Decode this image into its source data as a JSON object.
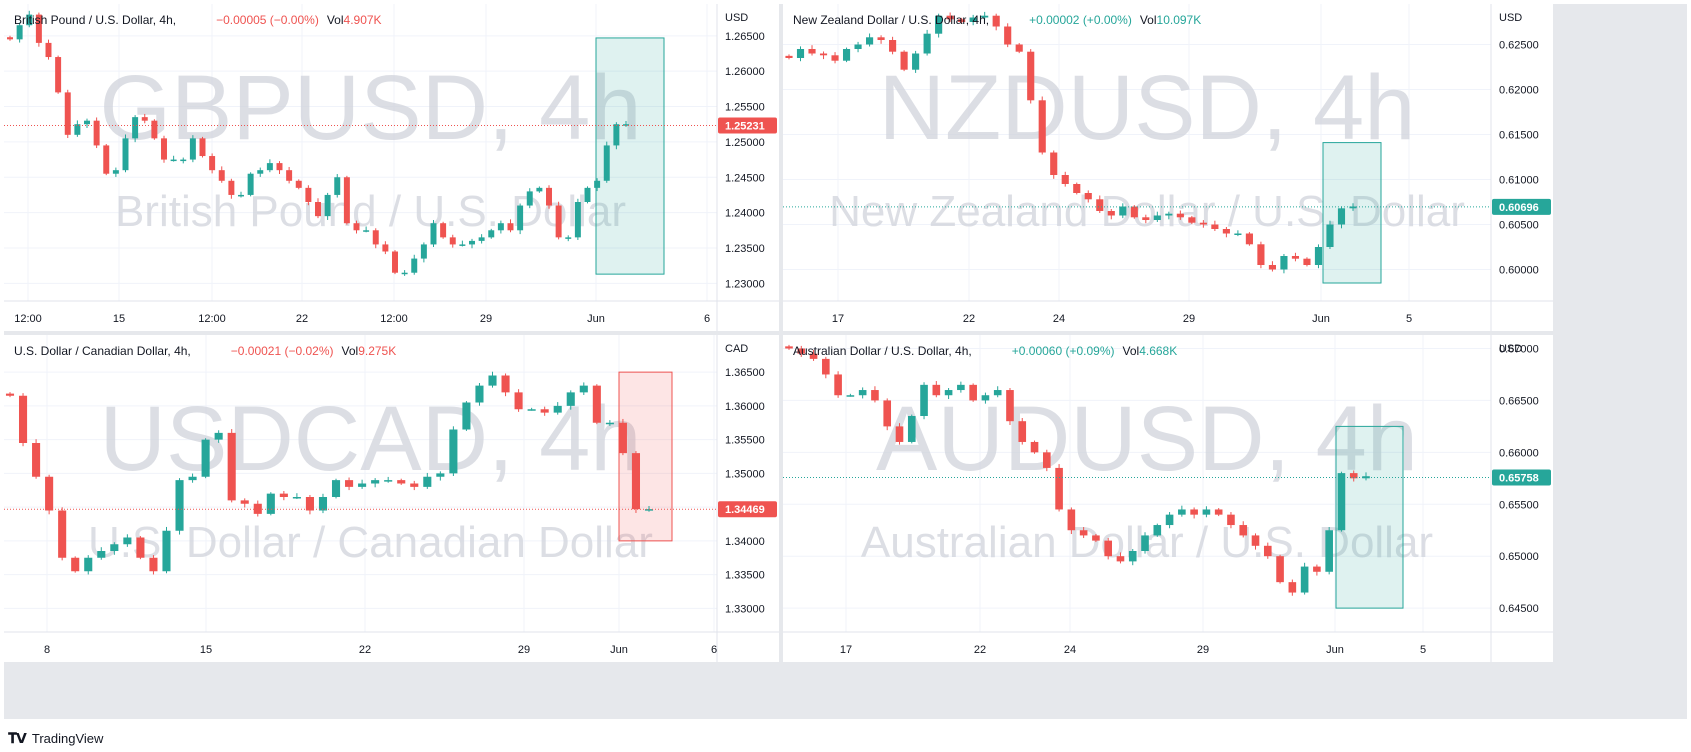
{
  "footer": {
    "brand": "TradingView",
    "logo_icon": "tradingview-logo-icon"
  },
  "colors": {
    "up": "#26a69a",
    "down": "#ef5350",
    "grid": "#f0f3fa",
    "watermark": "#d1d4dc"
  },
  "panels": [
    {
      "id": "gbpusd",
      "title": "British Pound / U.S. Dollar, 4h,",
      "change": "−0.00005 (−0.00%)",
      "vol_label": "Vol",
      "vol_value": "4.907K",
      "direction": "down",
      "currency": "USD",
      "watermark_main": "GBPUSD, 4h",
      "watermark_sub": "British Pound / U.S. Dollar",
      "price_label": "1.25231",
      "chart_data": {
        "type": "candlestick",
        "ylim": [
          1.2275,
          1.2695
        ],
        "y_ticks": [
          "1.23000",
          "1.23500",
          "1.24000",
          "1.24500",
          "1.25000",
          "1.25500",
          "1.26000",
          "1.26500"
        ],
        "x_ticks": [
          "12:00",
          "15",
          "12:00",
          "22",
          "12:00",
          "29",
          "Jun",
          "6"
        ],
        "last_price": 1.25231,
        "box": {
          "type": "long-position",
          "from": 1.2313,
          "to": 1.2647
        },
        "path": [
          1.2645,
          1.2665,
          1.268,
          1.264,
          1.262,
          1.257,
          1.251,
          1.2525,
          1.253,
          1.2495,
          1.2455,
          1.246,
          1.2505,
          1.2535,
          1.253,
          1.2505,
          1.2475,
          1.2475,
          1.2475,
          1.2505,
          1.248,
          1.246,
          1.2445,
          1.2425,
          1.2425,
          1.2455,
          1.246,
          1.247,
          1.246,
          1.2445,
          1.2435,
          1.2415,
          1.2395,
          1.2425,
          1.245,
          1.2385,
          1.2375,
          1.2375,
          1.2355,
          1.2345,
          1.2315,
          1.2315,
          1.2335,
          1.2355,
          1.2385,
          1.2365,
          1.2355,
          1.2355,
          1.236,
          1.2365,
          1.2375,
          1.2385,
          1.2375,
          1.241,
          1.243,
          1.2435,
          1.241,
          1.2365,
          1.2365,
          1.2415,
          1.2435,
          1.2445,
          1.2495,
          1.2525,
          1.2525
        ]
      }
    },
    {
      "id": "nzdusd",
      "title": "New Zealand Dollar / U.S. Dollar, 4h,",
      "change": "+0.00002 (+0.00%)",
      "vol_label": "Vol",
      "vol_value": "10.097K",
      "direction": "up",
      "currency": "USD",
      "watermark_main": "NZDUSD, 4h",
      "watermark_sub": "New Zealand Dollar / U.S. Dollar",
      "price_label": "0.60696",
      "chart_data": {
        "type": "candlestick",
        "ylim": [
          0.5965,
          0.6295
        ],
        "y_ticks": [
          "0.60000",
          "0.60500",
          "0.61000",
          "0.61500",
          "0.62000",
          "0.62500"
        ],
        "x_ticks": [
          "17",
          "22",
          "24",
          "29",
          "Jun",
          "5"
        ],
        "last_price": 0.60696,
        "box": {
          "type": "long-position",
          "from": 0.5985,
          "to": 0.6141
        },
        "path": [
          0.6235,
          0.6245,
          0.624,
          0.6238,
          0.6232,
          0.6245,
          0.625,
          0.6258,
          0.6255,
          0.6242,
          0.6222,
          0.624,
          0.6262,
          0.6282,
          0.6278,
          0.6275,
          0.628,
          0.6282,
          0.627,
          0.625,
          0.6242,
          0.6188,
          0.613,
          0.6105,
          0.6095,
          0.6085,
          0.6078,
          0.6065,
          0.606,
          0.607,
          0.6058,
          0.6055,
          0.606,
          0.6062,
          0.6058,
          0.6052,
          0.605,
          0.6045,
          0.604,
          0.604,
          0.6028,
          0.6005,
          0.6,
          0.6015,
          0.6012,
          0.6005,
          0.6025,
          0.605,
          0.6068,
          0.607
        ]
      }
    },
    {
      "id": "usdcad",
      "title": "U.S. Dollar / Canadian Dollar, 4h,",
      "change": "−0.00021 (−0.02%)",
      "vol_label": "Vol",
      "vol_value": "9.275K",
      "direction": "down",
      "currency": "CAD",
      "watermark_main": "USDCAD, 4h",
      "watermark_sub": "U.S. Dollar / Canadian Dollar",
      "price_label": "1.34469",
      "chart_data": {
        "type": "candlestick",
        "ylim": [
          1.3265,
          1.3705
        ],
        "y_ticks": [
          "1.33000",
          "1.33500",
          "1.34000",
          "1.34500",
          "1.35000",
          "1.35500",
          "1.36000",
          "1.36500"
        ],
        "x_ticks": [
          "8",
          "15",
          "22",
          "29",
          "Jun",
          "6"
        ],
        "last_price": 1.34469,
        "box": {
          "type": "short-position",
          "from": 1.34,
          "to": 1.365
        },
        "path": [
          1.3615,
          1.3545,
          1.3495,
          1.3445,
          1.3375,
          1.3355,
          1.3375,
          1.3385,
          1.3395,
          1.3405,
          1.3375,
          1.3355,
          1.3415,
          1.349,
          1.3495,
          1.355,
          1.356,
          1.346,
          1.3455,
          1.344,
          1.347,
          1.3465,
          1.3465,
          1.3445,
          1.3465,
          1.349,
          1.348,
          1.3485,
          1.349,
          1.349,
          1.3485,
          1.348,
          1.3495,
          1.35,
          1.3565,
          1.3605,
          1.363,
          1.3645,
          1.362,
          1.3595,
          1.3595,
          1.359,
          1.36,
          1.362,
          1.363,
          1.3575,
          1.3575,
          1.353,
          1.3447,
          1.3447
        ]
      }
    },
    {
      "id": "audusd",
      "title": "Australian Dollar / U.S. Dollar, 4h,",
      "change": "+0.00060 (+0.09%)",
      "vol_label": "Vol",
      "vol_value": "4.668K",
      "direction": "up",
      "currency": "USD",
      "watermark_main": "AUDUSD, 4h",
      "watermark_sub": "Australian Dollar / U.S. Dollar",
      "price_label": "0.65758",
      "chart_data": {
        "type": "candlestick",
        "ylim": [
          0.6427,
          0.6713
        ],
        "y_ticks": [
          "0.64500",
          "0.65000",
          "0.65500",
          "0.66000",
          "0.66500",
          "0.67000"
        ],
        "x_ticks": [
          "17",
          "22",
          "24",
          "29",
          "Jun",
          "5"
        ],
        "last_price": 0.65758,
        "box": {
          "type": "long-position",
          "from": 0.645,
          "to": 0.6625
        },
        "path": [
          0.67,
          0.6695,
          0.669,
          0.6675,
          0.6655,
          0.6655,
          0.666,
          0.665,
          0.6625,
          0.661,
          0.6635,
          0.6665,
          0.6655,
          0.666,
          0.6665,
          0.665,
          0.6655,
          0.666,
          0.663,
          0.661,
          0.66,
          0.6585,
          0.6545,
          0.6525,
          0.652,
          0.6515,
          0.65,
          0.6495,
          0.6505,
          0.652,
          0.653,
          0.654,
          0.6545,
          0.654,
          0.6545,
          0.654,
          0.653,
          0.652,
          0.651,
          0.65,
          0.6475,
          0.6465,
          0.649,
          0.6485,
          0.6525,
          0.658,
          0.6575,
          0.6577
        ]
      }
    }
  ]
}
